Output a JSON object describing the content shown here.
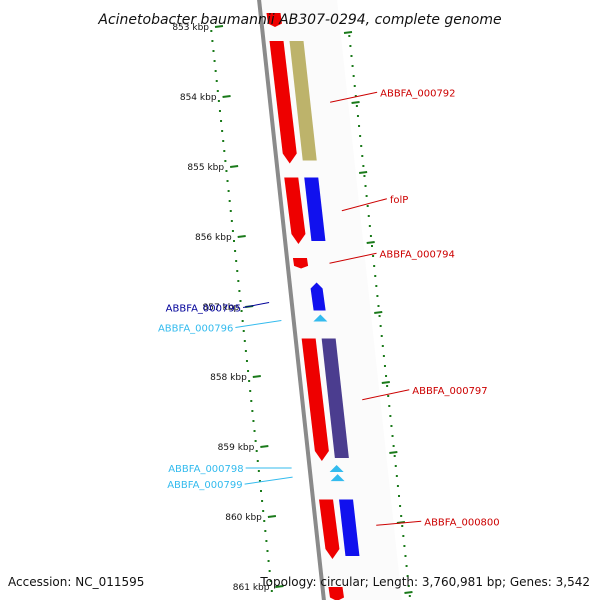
{
  "title": "Acinetobacter baumannii AB307-0294, complete genome",
  "footer": {
    "accession": "Accession: NC_011595",
    "summary": "Topology: circular; Length: 3,760,981 bp; Genes: 3,542"
  },
  "colors": {
    "backbone": "#8a8a8a",
    "cds_forward": "#ee0000",
    "cds_reverse": "#1111ee",
    "cds_red_label": "#cc0000",
    "cds_blue_label": "#000099",
    "rna": "#33bbee",
    "cog_olive": "#bdb36b",
    "cog_purple": "#4b3d8f",
    "ticks": "#1a7a1a"
  },
  "chart_data": {
    "type": "genome-map",
    "units": "kbp",
    "ticks": [
      {
        "kbp": 853,
        "label": "853 kbp"
      },
      {
        "kbp": 854,
        "label": "854 kbp"
      },
      {
        "kbp": 855,
        "label": "855 kbp"
      },
      {
        "kbp": 856,
        "label": "856 kbp"
      },
      {
        "kbp": 857,
        "label": "857 kbp"
      },
      {
        "kbp": 858,
        "label": "858 kbp"
      },
      {
        "kbp": 859,
        "label": "859 kbp"
      },
      {
        "kbp": 860,
        "label": "860 kbp"
      },
      {
        "kbp": 861,
        "label": "861 kbp"
      }
    ],
    "features": [
      {
        "start": 852.8,
        "end": 853.0,
        "strand": "forward",
        "kind": "cds",
        "cog": "",
        "label": ""
      },
      {
        "start": 853.2,
        "end": 854.95,
        "strand": "forward",
        "kind": "cds",
        "cog": "olive",
        "label": "ABBFA_000792"
      },
      {
        "start": 855.15,
        "end": 856.1,
        "strand": "forward",
        "kind": "cds",
        "cog": "blue",
        "label": "folP"
      },
      {
        "start": 856.3,
        "end": 856.45,
        "strand": "forward",
        "kind": "cds",
        "cog": "",
        "label": "ABBFA_000794"
      },
      {
        "start": 856.65,
        "end": 857.05,
        "strand": "reverse",
        "kind": "cds",
        "cog": "",
        "label": "ABBFA_000795"
      },
      {
        "start": 857.1,
        "end": 857.2,
        "strand": "reverse",
        "kind": "rna",
        "cog": "",
        "label": "ABBFA_000796"
      },
      {
        "start": 857.45,
        "end": 859.2,
        "strand": "forward",
        "kind": "cds",
        "cog": "purple",
        "label": "ABBFA_000797"
      },
      {
        "start": 859.25,
        "end": 859.35,
        "strand": "reverse",
        "kind": "rna",
        "cog": "",
        "label": "ABBFA_000798"
      },
      {
        "start": 859.38,
        "end": 859.48,
        "strand": "reverse",
        "kind": "rna",
        "cog": "",
        "label": "ABBFA_000799"
      },
      {
        "start": 859.75,
        "end": 860.6,
        "strand": "forward",
        "kind": "cds",
        "cog": "blue",
        "label": "ABBFA_000800"
      },
      {
        "start": 861.0,
        "end": 861.2,
        "strand": "forward",
        "kind": "cds",
        "cog": "",
        "label": ""
      }
    ]
  }
}
